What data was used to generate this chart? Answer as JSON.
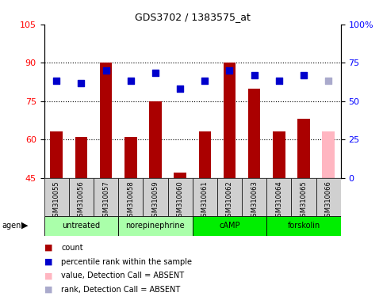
{
  "title": "GDS3702 / 1383575_at",
  "samples": [
    "GSM310055",
    "GSM310056",
    "GSM310057",
    "GSM310058",
    "GSM310059",
    "GSM310060",
    "GSM310061",
    "GSM310062",
    "GSM310063",
    "GSM310064",
    "GSM310065",
    "GSM310066"
  ],
  "bar_values": [
    63,
    61,
    90,
    61,
    75,
    47,
    63,
    90,
    80,
    63,
    68,
    63
  ],
  "bar_colors": [
    "#AA0000",
    "#AA0000",
    "#AA0000",
    "#AA0000",
    "#AA0000",
    "#AA0000",
    "#AA0000",
    "#AA0000",
    "#AA0000",
    "#AA0000",
    "#AA0000",
    "#FFB6C1"
  ],
  "dot_values": [
    83,
    82,
    87,
    83,
    86,
    80,
    83,
    87,
    85,
    83,
    85,
    83
  ],
  "dot_colors": [
    "#0000CC",
    "#0000CC",
    "#0000CC",
    "#0000CC",
    "#0000CC",
    "#0000CC",
    "#0000CC",
    "#0000CC",
    "#0000CC",
    "#0000CC",
    "#0000CC",
    "#AAAACC"
  ],
  "ylim_left": [
    45,
    105
  ],
  "ylim_right": [
    0,
    100
  ],
  "yticks_left": [
    45,
    60,
    75,
    90,
    105
  ],
  "yticks_right_vals": [
    0,
    25,
    50,
    75,
    100
  ],
  "yticks_right_labels": [
    "0",
    "25",
    "50",
    "75",
    "100%"
  ],
  "group_boundaries": [
    0,
    3,
    6,
    9,
    12
  ],
  "group_labels": [
    "untreated",
    "norepinephrine",
    "cAMP",
    "forskolin"
  ],
  "group_colors": [
    "#AAFFAA",
    "#AAFFAA",
    "#00EE00",
    "#00EE00"
  ],
  "bar_width": 0.5,
  "dot_size": 35,
  "grid_yticks": [
    60,
    75,
    90
  ],
  "colors_legend": [
    "#AA0000",
    "#0000CC",
    "#FFB6C1",
    "#AAAACC"
  ],
  "labels_legend": [
    "count",
    "percentile rank within the sample",
    "value, Detection Call = ABSENT",
    "rank, Detection Call = ABSENT"
  ]
}
